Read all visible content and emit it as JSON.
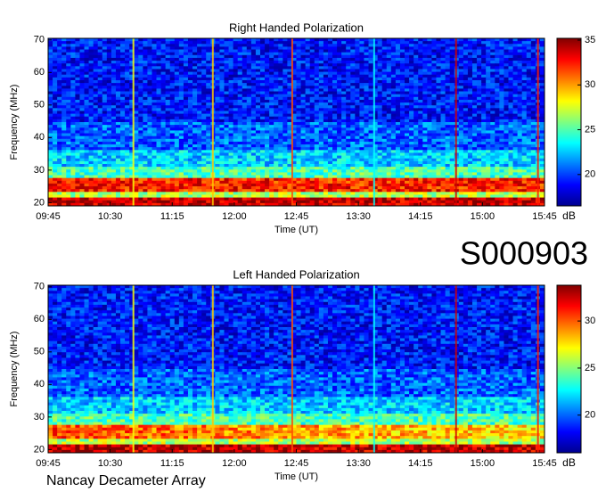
{
  "title": "S000903",
  "footer": "Nancay Decameter Array",
  "chart_data": [
    {
      "type": "heatmap",
      "title": "Right Handed Polarization",
      "x_label": "Time (UT)",
      "y_label": "Frequency (MHz)",
      "xlim": [
        9.75,
        15.75
      ],
      "xticks": [
        {
          "value": 9.75,
          "label": "09:45"
        },
        {
          "value": 10.5,
          "label": "10:30"
        },
        {
          "value": 11.25,
          "label": "11:15"
        },
        {
          "value": 12,
          "label": "12:00"
        },
        {
          "value": 12.75,
          "label": "12:45"
        },
        {
          "value": 13.5,
          "label": "13:30"
        },
        {
          "value": 14.25,
          "label": "14:15"
        },
        {
          "value": 15,
          "label": "15:00"
        },
        {
          "value": 15.75,
          "label": "15:45"
        }
      ],
      "ylim": [
        19,
        70.5
      ],
      "yticks": [
        20,
        30,
        40,
        50,
        60,
        70
      ],
      "colorbar_label": "dB",
      "clim": [
        16.5,
        35.2
      ],
      "cticks": [
        20,
        25,
        30,
        35
      ]
    },
    {
      "type": "heatmap",
      "title": "Left Handed Polarization",
      "x_label": "Time (UT)",
      "y_label": "Frequency (MHz)",
      "xlim": [
        9.75,
        15.75
      ],
      "xticks": [
        {
          "value": 9.75,
          "label": "09:45"
        },
        {
          "value": 10.5,
          "label": "10:30"
        },
        {
          "value": 11.25,
          "label": "11:15"
        },
        {
          "value": 12,
          "label": "12:00"
        },
        {
          "value": 12.75,
          "label": "12:45"
        },
        {
          "value": 13.5,
          "label": "13:30"
        },
        {
          "value": 14.25,
          "label": "14:15"
        },
        {
          "value": 15,
          "label": "15:00"
        },
        {
          "value": 15.75,
          "label": "15:45"
        }
      ],
      "ylim": [
        19,
        70.5
      ],
      "yticks": [
        20,
        30,
        40,
        50,
        60,
        70
      ],
      "colorbar_label": "dB",
      "clim": [
        16,
        33.8
      ],
      "cticks": [
        20,
        25,
        30
      ]
    }
  ]
}
